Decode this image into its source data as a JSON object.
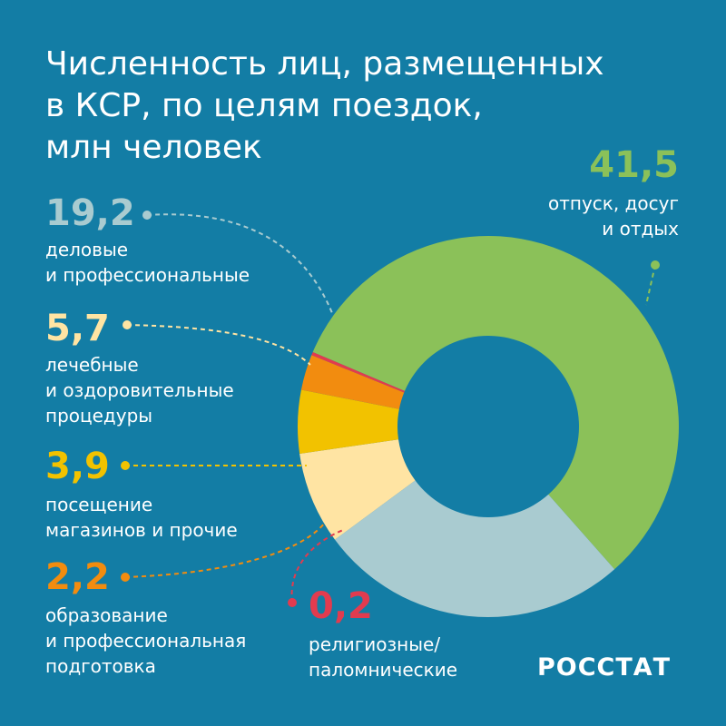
{
  "title_lines": [
    "Численность лиц, размещенных",
    "в КСР, по целям поездок,",
    "млн человек"
  ],
  "brand": "РОССТАТ",
  "colors": {
    "background": "#137da5",
    "leisure": "#8bc159",
    "business": "#a9cbd0",
    "medical": "#ffe4a3",
    "shopping": "#f2c200",
    "education": "#f28c0f",
    "religious": "#e23b4f"
  },
  "chart_data": {
    "type": "pie",
    "donut": true,
    "labels": [
      {
        "value_text": "41,5",
        "lines": [
          "отпуск, досуг",
          "и отдых"
        ]
      },
      {
        "value_text": "19,2",
        "lines": [
          "деловые",
          "и профессиональные"
        ]
      },
      {
        "value_text": "5,7",
        "lines": [
          "лечебные",
          "и оздоровительные",
          "процедуры"
        ]
      },
      {
        "value_text": "3,9",
        "lines": [
          "посещение",
          "магазинов и прочие"
        ]
      },
      {
        "value_text": "2,2",
        "lines": [
          "образование",
          "и профессиональная",
          "подготовка"
        ]
      },
      {
        "value_text": "0,2",
        "lines": [
          "религиозные/",
          "паломнические"
        ]
      }
    ],
    "values": [
      41.5,
      19.2,
      5.7,
      3.9,
      2.2,
      0.2
    ]
  }
}
